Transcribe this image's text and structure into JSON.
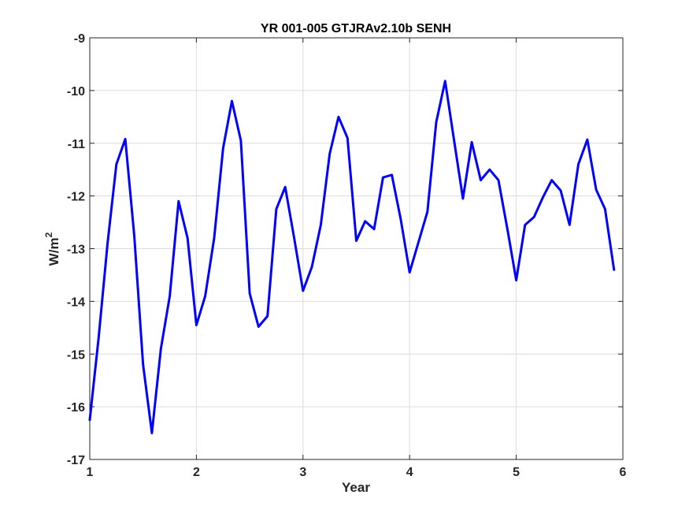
{
  "chart_data": {
    "type": "line",
    "title": "YR 001-005 GTJRAv2.10b SENH",
    "xlabel": "Year",
    "ylabel_base": "W/m",
    "ylabel_sup": "2",
    "xlim": [
      1,
      6
    ],
    "ylim": [
      -17,
      -9
    ],
    "xticks": [
      "1",
      "2",
      "3",
      "4",
      "5",
      "6"
    ],
    "yticks": [
      "-9",
      "-10",
      "-11",
      "-12",
      "-13",
      "-14",
      "-15",
      "-16",
      "-17"
    ],
    "xtick_values": [
      1,
      2,
      3,
      4,
      5,
      6
    ],
    "ytick_values": [
      -9,
      -10,
      -11,
      -12,
      -13,
      -14,
      -15,
      -16,
      -17
    ],
    "grid": true,
    "series": [
      {
        "color": "#0000ff",
        "x": [
          1.0,
          1.083,
          1.167,
          1.25,
          1.333,
          1.417,
          1.5,
          1.583,
          1.667,
          1.75,
          1.833,
          1.917,
          2.0,
          2.083,
          2.167,
          2.25,
          2.333,
          2.417,
          2.5,
          2.583,
          2.667,
          2.75,
          2.833,
          2.917,
          3.0,
          3.083,
          3.167,
          3.25,
          3.333,
          3.417,
          3.5,
          3.583,
          3.667,
          3.75,
          3.833,
          3.917,
          4.0,
          4.083,
          4.167,
          4.25,
          4.333,
          4.417,
          4.5,
          4.583,
          4.667,
          4.75,
          4.833,
          4.917,
          5.0,
          5.083,
          5.167,
          5.25,
          5.333,
          5.417,
          5.5,
          5.583,
          5.667,
          5.75,
          5.833,
          5.917
        ],
        "values": [
          -16.25,
          -14.7,
          -12.9,
          -11.4,
          -10.92,
          -12.75,
          -15.2,
          -16.5,
          -14.9,
          -13.9,
          -12.1,
          -12.8,
          -14.45,
          -13.9,
          -12.8,
          -11.1,
          -10.2,
          -10.95,
          -13.85,
          -14.48,
          -14.28,
          -12.25,
          -11.83,
          -12.8,
          -13.8,
          -13.35,
          -12.55,
          -11.2,
          -10.5,
          -10.9,
          -12.85,
          -12.48,
          -12.63,
          -11.65,
          -11.6,
          -12.45,
          -13.45,
          -12.88,
          -12.3,
          -10.6,
          -9.82,
          -10.95,
          -12.05,
          -10.98,
          -11.7,
          -11.5,
          -11.7,
          -12.63,
          -13.6,
          -12.55,
          -12.4,
          -12.03,
          -11.7,
          -11.9,
          -12.55,
          -11.4,
          -10.93,
          -11.88,
          -12.25,
          -13.4
        ]
      }
    ]
  }
}
